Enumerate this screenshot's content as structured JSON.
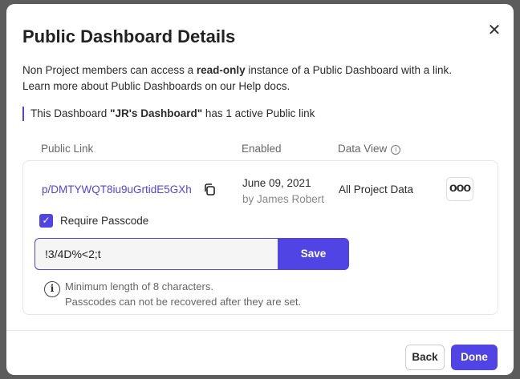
{
  "modal": {
    "title": "Public Dashboard Details",
    "description": {
      "pre": "Non Project members can access a ",
      "bold": "read-only",
      "post": " instance of a Public Dashboard with a link.",
      "line2": "Learn more about Public Dashboards on our Help docs."
    },
    "notice": {
      "pre": "This Dashboard ",
      "name": "\"JR's Dashboard\"",
      "post": " has 1 active Public link"
    },
    "columns": {
      "link": "Public Link",
      "enabled": "Enabled",
      "view": "Data View"
    },
    "row": {
      "link": "p/DMTYWQT8iu9uGrtidE5GXh",
      "date": "June 09, 2021",
      "by": "by James Robert",
      "data_view": "All Project Data",
      "more": "ooo"
    },
    "passcode": {
      "checkbox_label": "Require Passcode",
      "checked": true,
      "value": "!3/4D%<2;t",
      "save": "Save",
      "hint1": "Minimum length of 8 characters.",
      "hint2": "Passcodes can not be recovered after they are set."
    },
    "footer": {
      "back": "Back",
      "done": "Done"
    },
    "accent": "#5044e4"
  }
}
